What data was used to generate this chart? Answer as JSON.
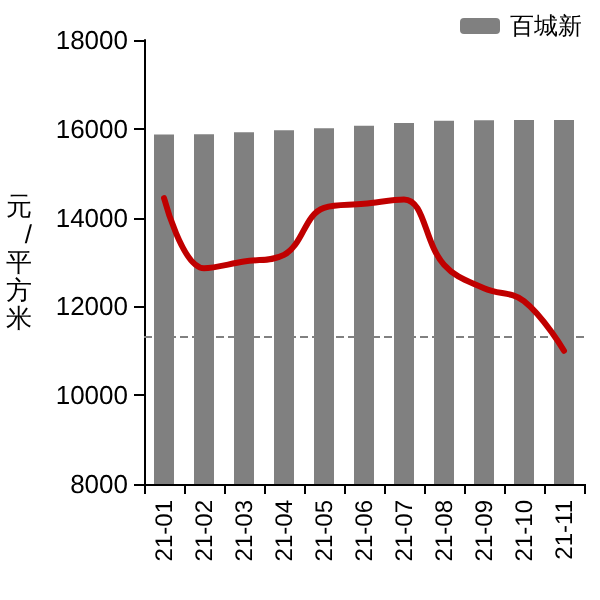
{
  "chart_data": {
    "type": "bar",
    "ylabel": "元/平方米",
    "categories": [
      "21-01",
      "21-02",
      "21-03",
      "21-04",
      "21-05",
      "21-06",
      "21-07",
      "21-08",
      "21-09",
      "21-10",
      "21-11"
    ],
    "series": [
      {
        "name": "百城新",
        "color": "#808080",
        "values": [
          15870,
          15880,
          15920,
          15970,
          16010,
          16070,
          16130,
          16180,
          16190,
          16200,
          16200
        ]
      },
      {
        "type": "line",
        "color": "#c00000",
        "values": [
          14440,
          12860,
          13010,
          13160,
          14220,
          14310,
          14410,
          12940,
          12410,
          12120,
          11000
        ]
      }
    ],
    "ylim": [
      8000,
      18000
    ],
    "yticks": [
      8000,
      10000,
      12000,
      14000,
      16000,
      18000
    ],
    "ref_lines": [
      {
        "axis": "y",
        "value": 11330,
        "color": "#808080",
        "line_style": "dashed"
      }
    ],
    "legend": "top right",
    "marker": "none",
    "line_style": "solid",
    "grid": false
  }
}
